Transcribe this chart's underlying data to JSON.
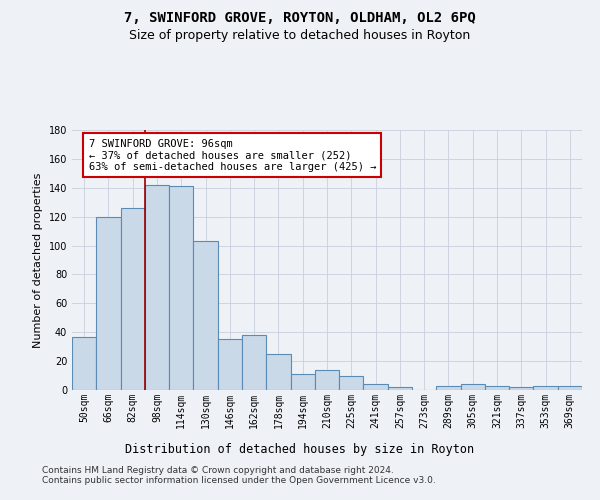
{
  "title": "7, SWINFORD GROVE, ROYTON, OLDHAM, OL2 6PQ",
  "subtitle": "Size of property relative to detached houses in Royton",
  "xlabel": "Distribution of detached houses by size in Royton",
  "ylabel": "Number of detached properties",
  "categories": [
    "50sqm",
    "66sqm",
    "82sqm",
    "98sqm",
    "114sqm",
    "130sqm",
    "146sqm",
    "162sqm",
    "178sqm",
    "194sqm",
    "210sqm",
    "225sqm",
    "241sqm",
    "257sqm",
    "273sqm",
    "289sqm",
    "305sqm",
    "321sqm",
    "337sqm",
    "353sqm",
    "369sqm"
  ],
  "values": [
    37,
    120,
    126,
    142,
    141,
    103,
    35,
    38,
    25,
    11,
    14,
    10,
    4,
    2,
    0,
    3,
    4,
    3,
    2,
    3,
    3
  ],
  "bar_color": "#c9d9e8",
  "bar_edge_color": "#5a8bb5",
  "bar_linewidth": 0.8,
  "property_line_color": "#990000",
  "annotation_text": "7 SWINFORD GROVE: 96sqm\n← 37% of detached houses are smaller (252)\n63% of semi-detached houses are larger (425) →",
  "annotation_box_color": "white",
  "annotation_box_edge_color": "#cc0000",
  "ylim": [
    0,
    180
  ],
  "background_color": "#eef2f7",
  "plot_bg_color": "#eef2f7",
  "grid_color": "#c8d0dc",
  "title_fontsize": 10,
  "subtitle_fontsize": 9,
  "xlabel_fontsize": 8.5,
  "ylabel_fontsize": 8,
  "tick_fontsize": 7,
  "annotation_fontsize": 7.5,
  "footer_fontsize": 6.5,
  "footer": "Contains HM Land Registry data © Crown copyright and database right 2024.\nContains public sector information licensed under the Open Government Licence v3.0."
}
